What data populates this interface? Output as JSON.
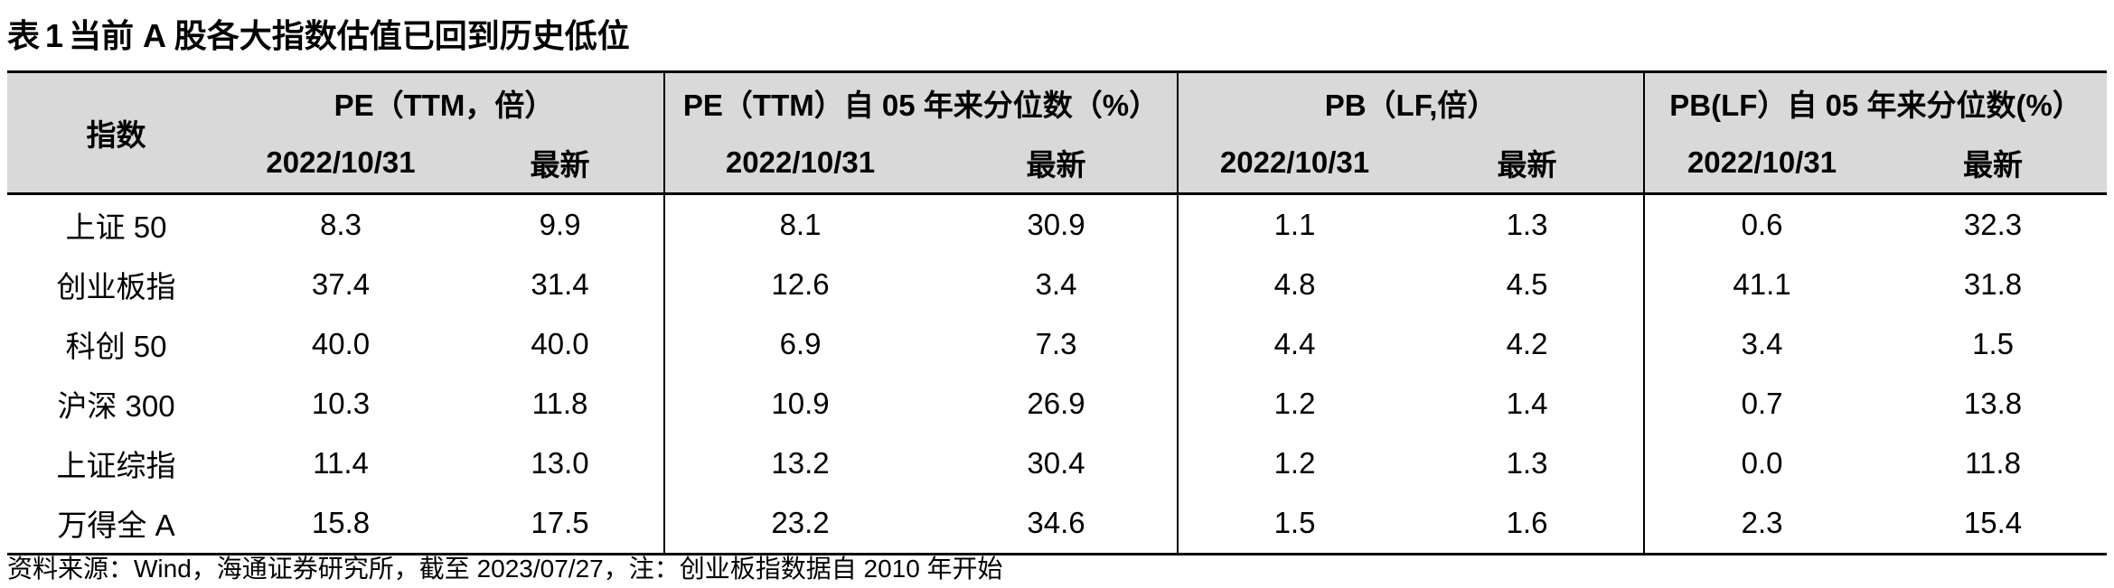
{
  "caption": {
    "prefix": "表",
    "number": "1",
    "title": "当前 A 股各大指数估值已回到历史低位"
  },
  "table": {
    "index_header": "指数",
    "groups": [
      {
        "label": "PE（TTM，倍）"
      },
      {
        "label": "PE（TTM）自 05 年来分位数（%）"
      },
      {
        "label": "PB（LF,倍）"
      },
      {
        "label": "PB(LF）自 05 年来分位数(%）"
      }
    ],
    "subheaders": [
      "2022/10/31",
      "最新",
      "2022/10/31",
      "最新",
      "2022/10/31",
      "最新",
      "2022/10/31",
      "最新"
    ],
    "rows": [
      {
        "name": "上证 50",
        "values": [
          "8.3",
          "9.9",
          "8.1",
          "30.9",
          "1.1",
          "1.3",
          "0.6",
          "32.3"
        ]
      },
      {
        "name": "创业板指",
        "values": [
          "37.4",
          "31.4",
          "12.6",
          "3.4",
          "4.8",
          "4.5",
          "41.1",
          "31.8"
        ]
      },
      {
        "name": "科创 50",
        "values": [
          "40.0",
          "40.0",
          "6.9",
          "7.3",
          "4.4",
          "4.2",
          "3.4",
          "1.5"
        ]
      },
      {
        "name": "沪深 300",
        "values": [
          "10.3",
          "11.8",
          "10.9",
          "26.9",
          "1.2",
          "1.4",
          "0.7",
          "13.8"
        ]
      },
      {
        "name": "上证综指",
        "values": [
          "11.4",
          "13.0",
          "13.2",
          "30.4",
          "1.2",
          "1.3",
          "0.0",
          "11.8"
        ]
      },
      {
        "name": "万得全 A",
        "values": [
          "15.8",
          "17.5",
          "23.2",
          "34.6",
          "1.5",
          "1.6",
          "2.3",
          "15.4"
        ]
      }
    ]
  },
  "source_note": "资料来源：Wind，海通证券研究所，截至 2023/07/27，注：创业板指数据自 2010 年开始"
}
